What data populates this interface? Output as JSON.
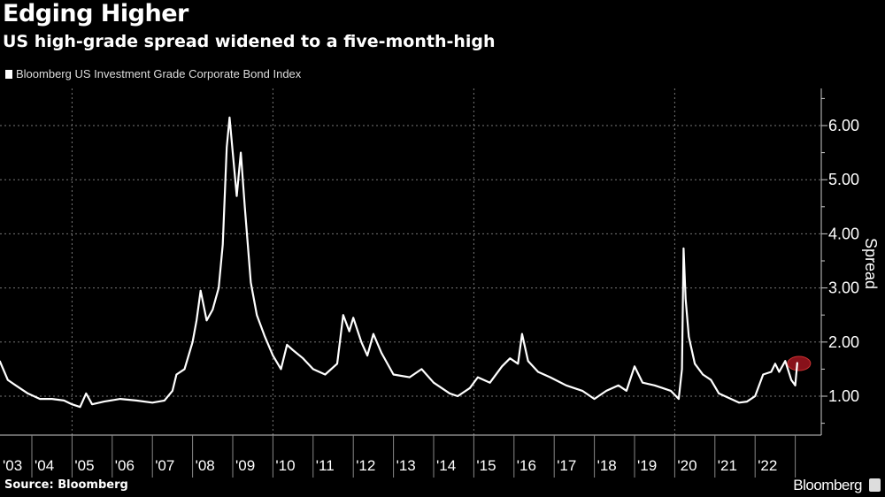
{
  "header": {
    "title": "Edging Higher",
    "subtitle": "US high-grade spread widened to a five-month-high"
  },
  "footer": {
    "source": "Source: Bloomberg",
    "brand": "Bloomberg"
  },
  "chart_data": {
    "type": "line",
    "title": "Edging Higher",
    "subtitle": "US high-grade spread widened to a five-month-high",
    "ylabel": "Spread",
    "xlabel": "",
    "ylim": [
      0.3,
      6.7
    ],
    "xlim": [
      2003.2,
      2023.65
    ],
    "yticks": [
      1,
      2,
      3,
      4,
      5,
      6
    ],
    "ytick_labels": [
      "1.00",
      "2.00",
      "3.00",
      "4.00",
      "5.00",
      "6.00"
    ],
    "xtick_labels": [
      "'03",
      "'04",
      "'05",
      "'06",
      "'07",
      "'08",
      "'09",
      "'10",
      "'11",
      "'12",
      "'13",
      "'14",
      "'15",
      "'16",
      "'17",
      "'18",
      "'19",
      "'20",
      "'21",
      "'22"
    ],
    "grid": true,
    "legend_placement": "top-left",
    "colors": {
      "line": "#ffffff",
      "highlight": "#a0141e",
      "background": "#000000"
    },
    "annotation": {
      "type": "highlight-circle",
      "x": 2023.05,
      "y": 1.62
    },
    "series": [
      {
        "name": "Bloomberg US Investment Grade Corporate Bond Index",
        "x": [
          2003.2,
          2003.4,
          2003.6,
          2003.9,
          2004.2,
          2004.5,
          2004.8,
          2005.0,
          2005.2,
          2005.35,
          2005.5,
          2005.8,
          2006.2,
          2006.6,
          2007.0,
          2007.3,
          2007.5,
          2007.6,
          2007.8,
          2008.0,
          2008.1,
          2008.2,
          2008.35,
          2008.5,
          2008.65,
          2008.75,
          2008.85,
          2008.92,
          2009.0,
          2009.1,
          2009.2,
          2009.3,
          2009.45,
          2009.6,
          2009.8,
          2010.0,
          2010.2,
          2010.35,
          2010.5,
          2010.75,
          2011.0,
          2011.3,
          2011.6,
          2011.75,
          2011.9,
          2012.0,
          2012.2,
          2012.35,
          2012.5,
          2012.7,
          2013.0,
          2013.4,
          2013.7,
          2014.0,
          2014.4,
          2014.6,
          2014.9,
          2015.1,
          2015.4,
          2015.7,
          2015.9,
          2016.1,
          2016.2,
          2016.35,
          2016.6,
          2016.9,
          2017.3,
          2017.7,
          2018.0,
          2018.3,
          2018.6,
          2018.8,
          2019.0,
          2019.2,
          2019.5,
          2019.7,
          2019.9,
          2020.1,
          2020.18,
          2020.22,
          2020.27,
          2020.35,
          2020.5,
          2020.7,
          2020.9,
          2021.1,
          2021.4,
          2021.6,
          2021.8,
          2022.0,
          2022.2,
          2022.4,
          2022.5,
          2022.6,
          2022.75,
          2022.9,
          2023.0,
          2023.05
        ],
        "y": [
          1.65,
          1.3,
          1.2,
          1.05,
          0.95,
          0.95,
          0.92,
          0.85,
          0.8,
          1.05,
          0.85,
          0.9,
          0.95,
          0.92,
          0.88,
          0.92,
          1.1,
          1.4,
          1.5,
          2.0,
          2.4,
          2.95,
          2.4,
          2.6,
          3.0,
          3.8,
          5.6,
          6.15,
          5.5,
          4.7,
          5.5,
          4.5,
          3.1,
          2.5,
          2.1,
          1.75,
          1.5,
          1.95,
          1.85,
          1.7,
          1.5,
          1.4,
          1.6,
          2.5,
          2.2,
          2.45,
          2.0,
          1.75,
          2.15,
          1.8,
          1.4,
          1.35,
          1.5,
          1.25,
          1.05,
          1.0,
          1.15,
          1.35,
          1.25,
          1.55,
          1.7,
          1.6,
          2.15,
          1.65,
          1.45,
          1.35,
          1.2,
          1.1,
          0.95,
          1.1,
          1.2,
          1.1,
          1.55,
          1.25,
          1.2,
          1.15,
          1.1,
          0.95,
          1.5,
          3.73,
          2.8,
          2.1,
          1.6,
          1.4,
          1.3,
          1.05,
          0.95,
          0.88,
          0.9,
          1.0,
          1.4,
          1.45,
          1.6,
          1.45,
          1.65,
          1.3,
          1.2,
          1.62
        ]
      }
    ]
  }
}
